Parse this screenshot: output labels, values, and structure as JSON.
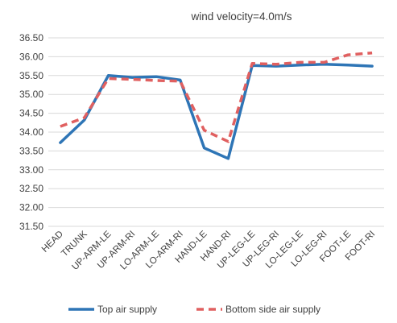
{
  "chart_data": {
    "type": "line",
    "title": "wind velocity=4.0m/s",
    "xlabel": "",
    "ylabel": "",
    "categories": [
      "HEAD",
      "TRUNK",
      "UP-ARM-LE",
      "UP-ARM-RI",
      "LO-ARM-LE",
      "LO-ARM-RI",
      "HAND-LE",
      "HAND-RI",
      "UP-LEG-LE",
      "UP-LEG-RI",
      "LO-LEG-LE",
      "LO-LEG-RI",
      "FOOT-LE",
      "FOOT-RI"
    ],
    "ylim": [
      31.5,
      36.5
    ],
    "yticks": [
      "31.50",
      "32.00",
      "32.50",
      "33.00",
      "33.50",
      "34.00",
      "34.50",
      "35.00",
      "35.50",
      "36.00",
      "36.50"
    ],
    "grid": "horizontal",
    "legend_position": "bottom",
    "series": [
      {
        "name": "Top air supply",
        "color": "#2E75B6",
        "style": "solid",
        "values": [
          33.72,
          34.32,
          35.5,
          35.45,
          35.47,
          35.38,
          33.58,
          33.3,
          35.77,
          35.75,
          35.78,
          35.8,
          35.78,
          35.75
        ]
      },
      {
        "name": "Bottom side air supply",
        "color": "#E06060",
        "style": "dashed",
        "values": [
          34.15,
          34.38,
          35.42,
          35.4,
          35.37,
          35.35,
          34.05,
          33.75,
          35.82,
          35.8,
          35.85,
          35.85,
          36.05,
          36.1
        ]
      }
    ]
  }
}
